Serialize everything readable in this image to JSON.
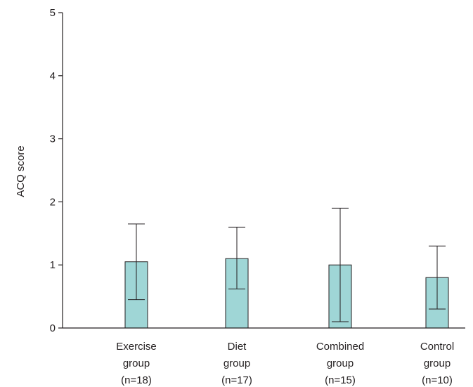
{
  "chart_data": {
    "type": "bar",
    "title": "",
    "xlabel": "",
    "ylabel": "ACQ score",
    "ylim": [
      0,
      5
    ],
    "yticks": [
      "0",
      "1",
      "2",
      "3",
      "4",
      "5"
    ],
    "grid": false,
    "legend": "none",
    "bar_color": "#9fd6d6",
    "bar_edge_color": "#231f20",
    "categories": [
      {
        "lines": [
          "Exercise",
          "group",
          "(n=18)"
        ]
      },
      {
        "lines": [
          "Diet",
          "group",
          "(n=17)"
        ]
      },
      {
        "lines": [
          "Combined",
          "group",
          "(n=15)"
        ]
      },
      {
        "lines": [
          "Control",
          "group",
          "(n=10)"
        ]
      }
    ],
    "values": [
      1.05,
      1.1,
      1.0,
      0.8
    ],
    "error_low": [
      0.45,
      0.62,
      0.1,
      0.3
    ],
    "error_high": [
      1.65,
      1.6,
      1.9,
      1.3
    ]
  }
}
